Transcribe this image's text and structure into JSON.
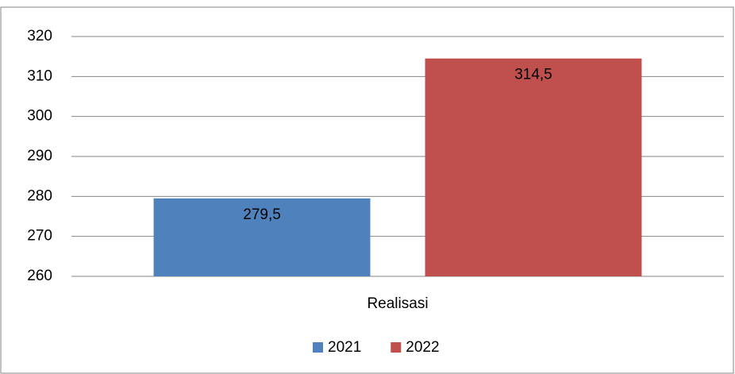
{
  "chart_data": {
    "type": "bar",
    "categories": [
      "Realisasi"
    ],
    "series": [
      {
        "name": "2021",
        "color": "#4f81bd",
        "values": [
          279.5
        ],
        "value_labels": [
          "279,5"
        ]
      },
      {
        "name": "2022",
        "color": "#c0504d",
        "values": [
          314.5
        ],
        "value_labels": [
          "314,5"
        ]
      }
    ],
    "ylim": [
      260,
      320
    ],
    "yticks": [
      260,
      270,
      280,
      290,
      300,
      310,
      320
    ],
    "grid": true,
    "legend": "bottom"
  }
}
